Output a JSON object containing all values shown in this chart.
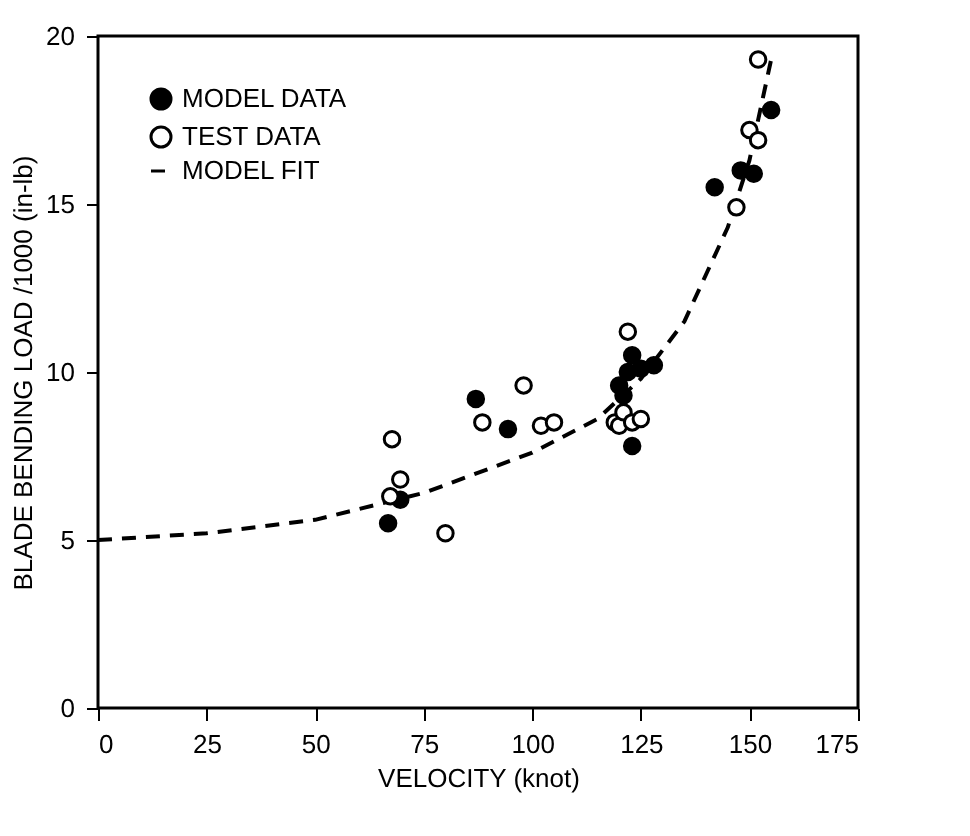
{
  "chart_data": {
    "type": "scatter",
    "xlabel": "VELOCITY (knot)",
    "ylabel": "BLADE BENDING LOAD /1000 (in-lb)",
    "xlim": [
      0,
      175
    ],
    "xticks": [
      0,
      25,
      50,
      75,
      100,
      125,
      150,
      175
    ],
    "ylim": [
      0,
      20
    ],
    "yticks": [
      0,
      5,
      10,
      15,
      20
    ],
    "grid": false,
    "legend": "top left",
    "series": [
      {
        "name": "MODEL DATA",
        "marker": "circle",
        "color": "#000000",
        "x": [
          66.8,
          69.6,
          87,
          94.4,
          120,
          121,
          122,
          123,
          123,
          125,
          128,
          142,
          148,
          151,
          155
        ],
        "values": [
          5.5,
          6.2,
          9.2,
          8.3,
          9.6,
          9.3,
          10.0,
          10.5,
          7.8,
          10.1,
          10.2,
          15.5,
          16.0,
          15.9,
          17.8
        ]
      },
      {
        "name": "TEST DATA",
        "marker": "circle",
        "color": "#ffffff",
        "x": [
          67.7,
          67.3,
          69.6,
          80,
          88.5,
          98,
          102,
          105,
          119,
          120,
          121,
          122,
          123,
          125,
          147,
          150,
          152,
          152
        ],
        "values": [
          8.0,
          6.3,
          6.8,
          5.2,
          8.5,
          9.6,
          8.4,
          8.5,
          8.5,
          8.4,
          8.8,
          11.2,
          8.5,
          8.6,
          14.9,
          17.2,
          19.3,
          16.9
        ]
      },
      {
        "name": "MODEL FIT",
        "type": "line",
        "marker": "none",
        "line_style": "dashed",
        "color": "#000000",
        "x": [
          0,
          25,
          50,
          75,
          100,
          115,
          125,
          135,
          145,
          150,
          155
        ],
        "values": [
          5,
          5.2,
          5.6,
          6.4,
          7.6,
          8.6,
          9.8,
          11.5,
          14.3,
          16.3,
          19.3
        ]
      }
    ]
  }
}
